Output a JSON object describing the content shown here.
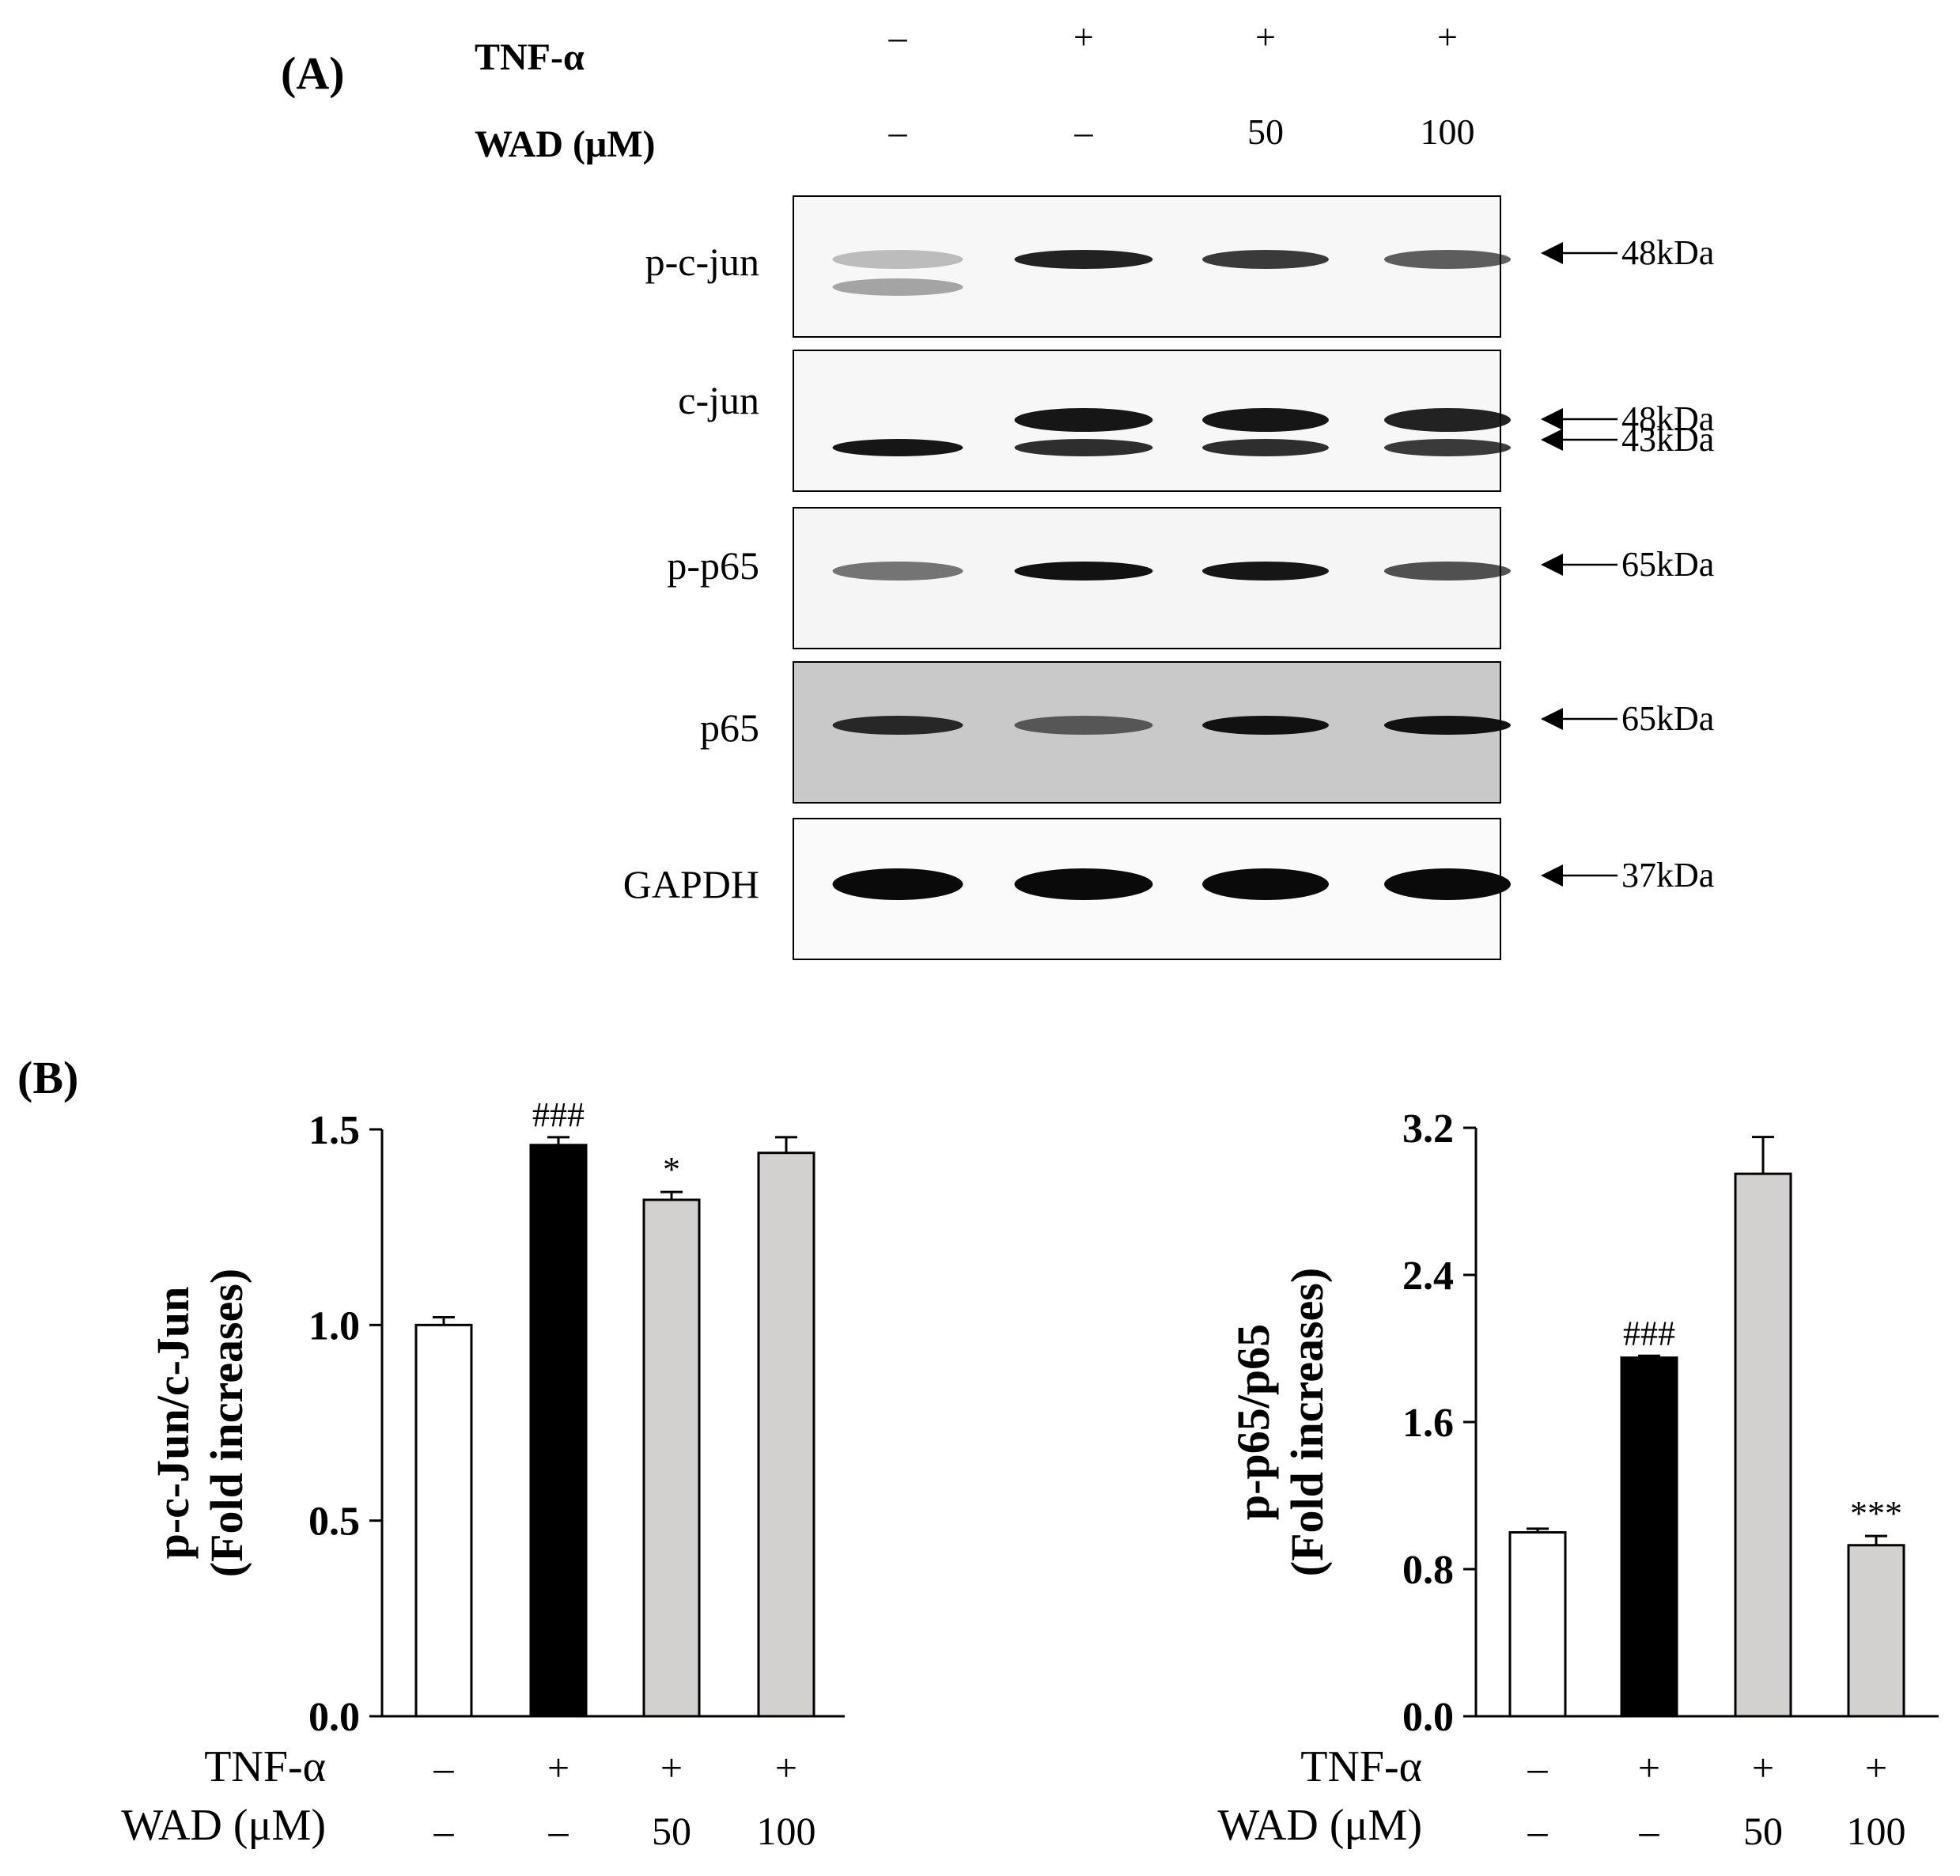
{
  "panel_a": {
    "label": "(A)",
    "rows": [
      {
        "name": "TNF-α",
        "values": [
          "–",
          "+",
          "+",
          "+"
        ]
      },
      {
        "name": "WAD (μM)",
        "values": [
          "–",
          "–",
          "50",
          "100"
        ]
      }
    ],
    "blots": [
      {
        "protein": "p-c-jun",
        "markers": [
          "48kDa"
        ],
        "lane_intensity": [
          0.25,
          0.9,
          0.8,
          0.65
        ],
        "lower_band": [
          0.35,
          0,
          0,
          0
        ],
        "background": "#f7f7f7"
      },
      {
        "protein": "c-jun",
        "markers": [
          "48kDa",
          "43kDa"
        ],
        "lane_intensity": [
          0,
          0.95,
          0.95,
          0.9
        ],
        "lower_band": [
          0.95,
          0.85,
          0.85,
          0.8
        ],
        "background": "#f7f7f7"
      },
      {
        "protein": "p-p65",
        "markers": [
          "65kDa"
        ],
        "lane_intensity": [
          0.55,
          0.97,
          0.95,
          0.7
        ],
        "lower_band": [
          0,
          0,
          0,
          0
        ],
        "background": "#f5f5f5"
      },
      {
        "protein": "p65",
        "markers": [
          "65kDa"
        ],
        "lane_intensity": [
          0.85,
          0.6,
          0.97,
          0.97
        ],
        "lower_band": [
          0,
          0,
          0,
          0
        ],
        "background": "#c9c9c9"
      },
      {
        "protein": "GAPDH",
        "markers": [
          "37kDa"
        ],
        "lane_intensity": [
          1,
          1,
          1,
          1
        ],
        "lower_band": [
          0,
          0,
          0,
          0
        ],
        "background": "#fafafa"
      }
    ]
  },
  "panel_b": {
    "label": "(B)",
    "row_labels": [
      "TNF-α",
      "WAD (μM)"
    ],
    "row_values": [
      [
        "–",
        "+",
        "+",
        "+"
      ],
      [
        "–",
        "–",
        "50",
        "100"
      ]
    ]
  },
  "colors": {
    "control": "#ffffff",
    "tnf": "#000000",
    "wad": "#d3d0d0",
    "blot_band": "#0a0a0a"
  },
  "chart_data": [
    {
      "type": "bar",
      "categories": [
        "Control",
        "TNF-α",
        "TNF-α + WAD 50",
        "TNF-α + WAD 100"
      ],
      "values": [
        1.0,
        1.46,
        1.32,
        1.44
      ],
      "errors": [
        0.02,
        0.02,
        0.02,
        0.04
      ],
      "annotations": [
        "",
        "###",
        "*",
        ""
      ],
      "ylabel_line1": "p-c-Jun/c-Jun",
      "ylabel_line2": "(Fold increases)",
      "ylim": [
        0,
        1.5
      ],
      "yticks": [
        "0.0",
        "0.5",
        "1.0",
        "1.5"
      ],
      "grid": false
    },
    {
      "type": "bar",
      "categories": [
        "Control",
        "TNF-α",
        "TNF-α + WAD 50",
        "TNF-α + WAD 100"
      ],
      "values": [
        1.0,
        1.95,
        2.95,
        0.93
      ],
      "errors": [
        0.02,
        0.01,
        0.2,
        0.05
      ],
      "annotations": [
        "",
        "###",
        "",
        "***"
      ],
      "ylabel_line1": "p-p65/p65",
      "ylabel_line2": "(Fold increases)",
      "ylim": [
        0,
        3.2
      ],
      "yticks": [
        "0.0",
        "0.8",
        "1.6",
        "2.4",
        "3.2"
      ],
      "grid": false
    }
  ]
}
